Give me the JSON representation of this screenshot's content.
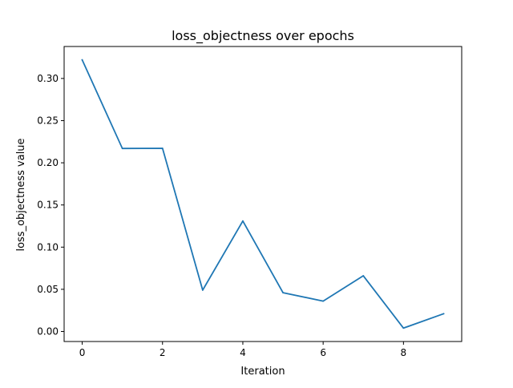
{
  "chart_data": {
    "type": "line",
    "title": "loss_objectness over epochs",
    "xlabel": "Iteration",
    "ylabel": "loss_objectness value",
    "x": [
      0,
      1,
      2,
      3,
      4,
      5,
      6,
      7,
      8,
      9
    ],
    "series": [
      {
        "values": [
          0.322,
          0.217,
          0.2172,
          0.049,
          0.131,
          0.046,
          0.036,
          0.066,
          0.004,
          0.021
        ],
        "color": "#1f77b4"
      }
    ],
    "xlim": [
      -0.45,
      9.45
    ],
    "ylim": [
      -0.0119,
      0.3379
    ],
    "x_ticks": [
      0,
      2,
      4,
      6,
      8
    ],
    "x_tick_labels": [
      "0",
      "2",
      "4",
      "6",
      "8"
    ],
    "y_ticks": [
      0.0,
      0.05,
      0.1,
      0.15,
      0.2,
      0.25,
      0.3
    ],
    "y_tick_labels": [
      "0.00",
      "0.05",
      "0.10",
      "0.15",
      "0.20",
      "0.25",
      "0.30"
    ],
    "grid": false,
    "legend": "none"
  }
}
